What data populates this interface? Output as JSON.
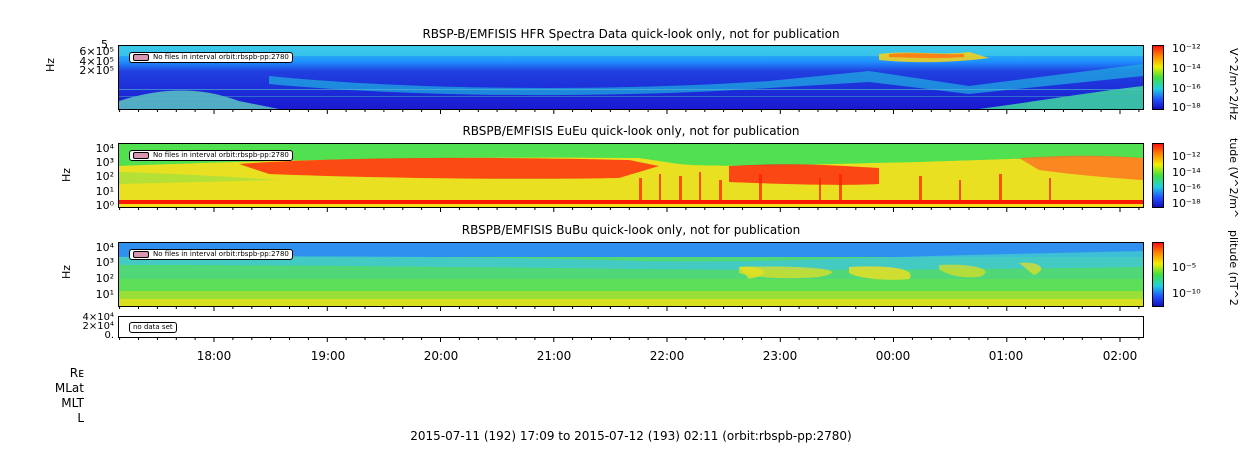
{
  "chart_data": [
    {
      "type": "heatmap",
      "title": "RBSP-B/EMFISIS  HFR Spectra Data quick-look only, not for publication",
      "ylabel": "Hz",
      "yticks": [
        "5",
        "6×10⁵",
        "4×10⁵",
        "2×10⁵"
      ],
      "colorbar_label": "V^2/m^2/Hz",
      "colorbar_ticks": [
        "10⁻¹²",
        "10⁻¹⁴",
        "10⁻¹⁶",
        "10⁻¹⁸"
      ],
      "annotation": "No files in interval orbit:rbspb-pp:2780"
    },
    {
      "type": "heatmap",
      "title": "RBSPB/EMFISIS  EuEu quick-look only, not for publication",
      "ylabel": "Hz",
      "yticks": [
        "10⁴",
        "10³",
        "10²",
        "10¹",
        "10⁰"
      ],
      "colorbar_label": "tude (V^2/m^",
      "colorbar_ticks": [
        "10⁻¹²",
        "10⁻¹⁴",
        "10⁻¹⁶",
        "10⁻¹⁸"
      ],
      "annotation": "No files in interval orbit:rbspb-pp:2780"
    },
    {
      "type": "heatmap",
      "title": "RBSPB/EMFISIS  BuBu quick-look only, not for publication",
      "ylabel": "Hz",
      "yticks": [
        "10⁴",
        "10³",
        "10²",
        "10¹"
      ],
      "colorbar_label": "plitude (nT^2",
      "colorbar_ticks": [
        "10⁻⁵",
        "10⁻¹⁰"
      ],
      "annotation": "No files in interval orbit:rbspb-pp:2780"
    },
    {
      "type": "line",
      "yticks": [
        "4×10⁴",
        "2×10⁴",
        "0."
      ],
      "annotation": "no data set"
    }
  ],
  "x_axis": {
    "tick_labels": [
      "18:00",
      "19:00",
      "20:00",
      "21:00",
      "22:00",
      "23:00",
      "00:00",
      "01:00",
      "02:00"
    ],
    "ephemeris_labels": [
      "Rᴇ",
      "MLat",
      "MLT",
      "L"
    ],
    "range_label": "2015-07-11 (192) 17:09 to 2015-07-12 (193) 02:11 (orbit:rbspb-pp:2780)"
  }
}
